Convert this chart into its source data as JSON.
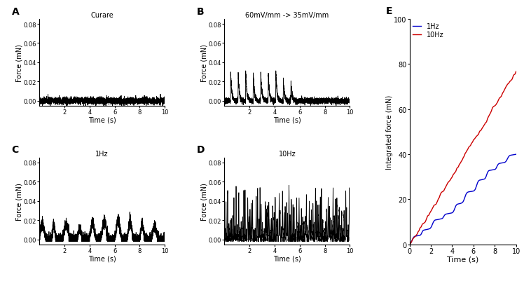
{
  "panel_labels": [
    "A",
    "B",
    "C",
    "D",
    "E"
  ],
  "title_A": "Curare",
  "title_B": "60mV/mm -> 35mV/mm",
  "title_C": "1Hz",
  "title_D": "10Hz",
  "xlabel": "Time (s)",
  "ylabel_force": "Force (mN)",
  "ylabel_E": "Integrated force (mN)",
  "xlim_ABCD": [
    0,
    10
  ],
  "ylim_ABCD": [
    -0.005,
    0.085
  ],
  "yticks_ABCD": [
    0.0,
    0.02,
    0.04,
    0.06,
    0.08
  ],
  "xticks_ABCD": [
    2,
    4,
    6,
    8,
    10
  ],
  "xlim_E": [
    0,
    10
  ],
  "ylim_E": [
    0,
    100
  ],
  "yticks_E": [
    0,
    20,
    40,
    60,
    80,
    100
  ],
  "xticks_E": [
    0,
    2,
    4,
    6,
    8,
    10
  ],
  "color_1Hz": "#0000CC",
  "color_10Hz": "#CC0000",
  "legend_E": [
    "1Hz",
    "10Hz"
  ],
  "background_color": "#ffffff",
  "line_color": "#000000",
  "line_width": 0.6,
  "label_fontsize": 7,
  "title_fontsize": 7,
  "tick_fontsize": 6,
  "panel_label_fontsize": 10,
  "legend_fontsize": 7
}
